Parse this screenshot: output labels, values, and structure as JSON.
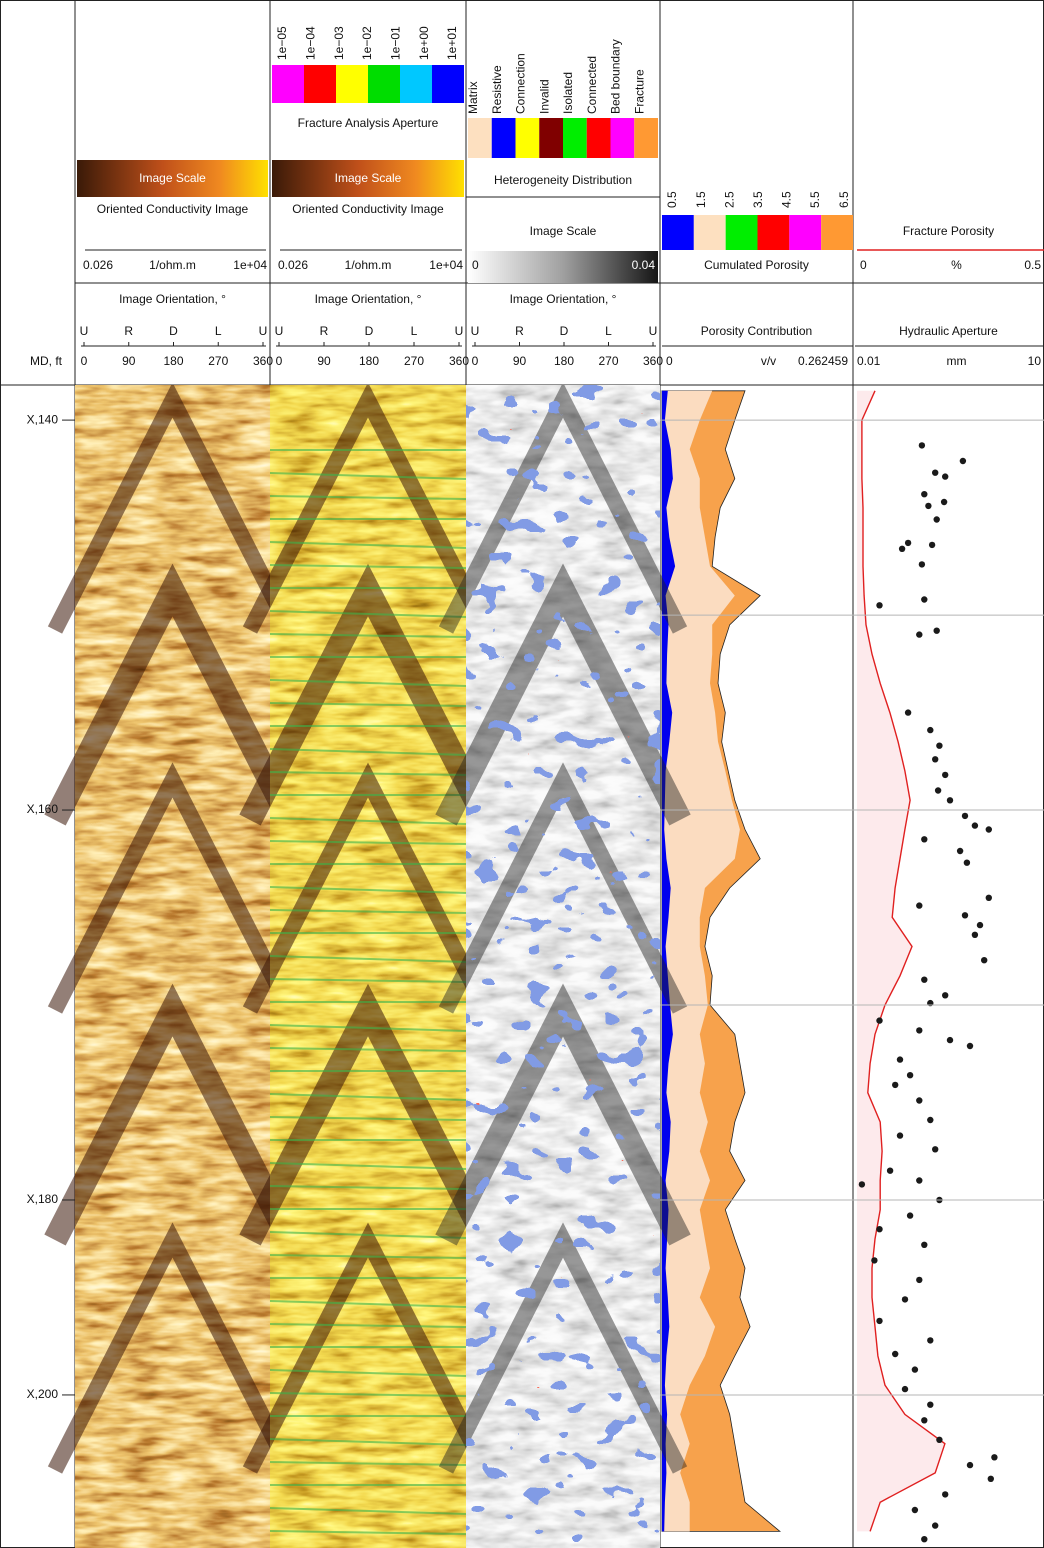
{
  "chart_data": [
    {
      "type": "depth",
      "title": "MD, ft",
      "ylim": [
        138.2,
        197.85
      ],
      "gridlines": [
        140,
        150,
        160,
        170,
        180,
        190
      ],
      "labels": [
        "X,140",
        "X,160",
        "X,180",
        "X,200"
      ]
    },
    {
      "type": "image",
      "palette": "conductivity",
      "scale_title": "Image Scale",
      "title": "Oriented Conductivity Image",
      "scale_ticks": [
        0.026,
        {
          "value": 10000,
          "label": "1e+04"
        }
      ],
      "scale_unit": "1/ohm.m",
      "orientation_title": "Image Orientation, °",
      "orientation_labels": [
        "U",
        "R",
        "D",
        "L",
        "U"
      ],
      "xlim": [
        0,
        360
      ],
      "xticks": [
        0,
        90,
        180,
        270,
        360
      ]
    },
    {
      "type": "image",
      "palette": "fracture",
      "scale_title": "Image Scale",
      "title": "Oriented Conductivity Image",
      "scale_ticks": [
        0.026,
        {
          "value": 10000,
          "label": "1e+04"
        }
      ],
      "scale_unit": "1/ohm.m",
      "orientation_title": "Image Orientation, °",
      "orientation_labels": [
        "U",
        "R",
        "D",
        "L",
        "U"
      ],
      "xlim": [
        0,
        360
      ],
      "xticks": [
        0,
        90,
        180,
        270,
        360
      ],
      "legend": {
        "title": "Fracture Analysis Aperture",
        "ticks": [
          {
            "value": 1e-05,
            "label": "1e−05"
          },
          {
            "value": 0.0001,
            "label": "1e−04"
          },
          {
            "value": 0.001,
            "label": "1e−03"
          },
          {
            "value": 0.01,
            "label": "1e−02"
          },
          {
            "value": 0.1,
            "label": "1e−01"
          },
          {
            "value": 1,
            "label": "1e+00"
          },
          {
            "value": 10,
            "label": "1e+01"
          }
        ],
        "colors": [
          "#ff00ff",
          "#ff0000",
          "#ffff00",
          "#00dd00",
          "#00c8ff",
          "#0000ff"
        ]
      }
    },
    {
      "type": "image",
      "palette": "heterogeneity",
      "scale_title": "Image Scale",
      "scale_ticks": [
        0,
        0.04
      ],
      "orientation_title": "Image Orientation, °",
      "orientation_labels": [
        "U",
        "R",
        "D",
        "L",
        "U"
      ],
      "xlim": [
        0,
        360
      ],
      "xticks": [
        0,
        90,
        180,
        270,
        360
      ],
      "legend": {
        "title": "Heterogeneity Distribution",
        "labels": [
          "Matrix",
          "Resistive",
          "Connection",
          "Invalid",
          "Isolated",
          "Connected",
          "Bed boundary",
          "Fracture"
        ],
        "colors": [
          "#fde0c0",
          "#0000ff",
          "#ffff00",
          "#800000",
          "#00ee00",
          "#ff0000",
          "#ff00ff",
          "#ff9933"
        ]
      }
    },
    {
      "type": "area",
      "title": "Porosity Contribution",
      "xlim": [
        0,
        0.262459
      ],
      "xticks": [
        0,
        0.262459
      ],
      "unit": "v/v",
      "legend": {
        "title": "Cumulated Porosity",
        "ticks": [
          0.5,
          1.5,
          2.5,
          3.5,
          4.5,
          5.5,
          6.5
        ],
        "colors": [
          "#0000ff",
          "#fde0c0",
          "#00ee00",
          "#ff0000",
          "#ff00ff",
          "#ff9933"
        ]
      },
      "depth": [
        138.5,
        140,
        141.5,
        143,
        144.5,
        146,
        147.5,
        149,
        150.5,
        152,
        153.5,
        155,
        156.5,
        158,
        159.5,
        161,
        162.5,
        164,
        165.5,
        167,
        168.5,
        170,
        171.5,
        173,
        174.5,
        176,
        177.5,
        179,
        180.5,
        182,
        183.5,
        185,
        186.5,
        188,
        189.5,
        191,
        192.5,
        194,
        195.5,
        197
      ],
      "series": [
        {
          "color": "#f7a24c",
          "values": [
            0.114,
            0.1,
            0.087,
            0.1,
            0.08,
            0.073,
            0.069,
            0.135,
            0.093,
            0.08,
            0.077,
            0.087,
            0.082,
            0.091,
            0.1,
            0.114,
            0.135,
            0.093,
            0.066,
            0.059,
            0.069,
            0.066,
            0.1,
            0.107,
            0.114,
            0.1,
            0.093,
            0.114,
            0.087,
            0.1,
            0.114,
            0.107,
            0.121,
            0.1,
            0.08,
            0.093,
            0.1,
            0.107,
            0.114,
            0.162
          ]
        },
        {
          "color": "#fbdcc0",
          "values": [
            0.069,
            0.052,
            0.038,
            0.052,
            0.052,
            0.059,
            0.066,
            0.1,
            0.069,
            0.069,
            0.066,
            0.073,
            0.077,
            0.087,
            0.096,
            0.107,
            0.1,
            0.059,
            0.052,
            0.052,
            0.059,
            0.063,
            0.052,
            0.059,
            0.052,
            0.063,
            0.052,
            0.066,
            0.052,
            0.059,
            0.066,
            0.052,
            0.073,
            0.059,
            0.038,
            0.025,
            0.038,
            0.025,
            0.038,
            0.038
          ]
        },
        {
          "color": "#0000ee",
          "values": [
            0.008,
            0.004,
            0.012,
            0.015,
            0.006,
            0.01,
            0.018,
            0.005,
            0.009,
            0.007,
            0.006,
            0.014,
            0.01,
            0.005,
            0.004,
            0.003,
            0.006,
            0.012,
            0.009,
            0.005,
            0.008,
            0.011,
            0.015,
            0.009,
            0.006,
            0.012,
            0.01,
            0.005,
            0.009,
            0.007,
            0.005,
            0.008,
            0.01,
            0.006,
            0.004,
            0.007,
            0.005,
            0.006,
            0.004,
            0.003
          ]
        }
      ]
    },
    {
      "type": "line-scatter",
      "line": {
        "title": "Fracture Porosity",
        "xlim": [
          0,
          0.5
        ],
        "xticks": [
          0,
          0.5
        ],
        "unit": "%",
        "color": "#e02020",
        "fill": "#fdeaec",
        "values": [
          0.048,
          0.013,
          0.013,
          0.013,
          0.016,
          0.016,
          0.016,
          0.019,
          0.024,
          0.04,
          0.062,
          0.088,
          0.11,
          0.128,
          0.142,
          0.128,
          0.115,
          0.102,
          0.094,
          0.147,
          0.115,
          0.075,
          0.048,
          0.035,
          0.029,
          0.062,
          0.067,
          0.062,
          0.062,
          0.048,
          0.04,
          0.04,
          0.048,
          0.056,
          0.075,
          0.128,
          0.235,
          0.209,
          0.062,
          0.035
        ]
      },
      "scatter": {
        "title": "Hydraulic Aperture",
        "xlim": [
          0.01,
          10
        ],
        "xticks": [
          0.01,
          10
        ],
        "unit": "mm",
        "log": true,
        "color": "#1a1a1a",
        "depth": [
          141.3,
          142.1,
          142.7,
          142.9,
          143.8,
          144.2,
          144.4,
          145.1,
          146.3,
          146.4,
          146.6,
          147.4,
          149.2,
          149.5,
          150.8,
          151.0,
          155.0,
          155.9,
          156.7,
          157.4,
          158.2,
          159.0,
          159.5,
          160.3,
          160.8,
          161.0,
          161.5,
          162.1,
          162.7,
          164.5,
          164.9,
          165.4,
          165.9,
          166.4,
          167.7,
          168.7,
          169.5,
          169.9,
          170.8,
          171.3,
          171.8,
          172.1,
          172.8,
          173.6,
          174.1,
          174.9,
          175.9,
          176.7,
          177.4,
          178.5,
          179.0,
          179.2,
          180.0,
          180.8,
          181.5,
          182.3,
          183.1,
          184.1,
          185.1,
          186.2,
          187.2,
          187.9,
          188.7,
          189.7,
          190.5,
          191.3,
          192.3,
          193.2,
          193.6,
          194.3,
          195.1,
          195.9,
          196.7,
          197.4
        ],
        "values": [
          0.11,
          0.5,
          0.18,
          0.26,
          0.12,
          0.25,
          0.14,
          0.19,
          0.066,
          0.16,
          0.053,
          0.11,
          0.12,
          0.023,
          0.19,
          0.1,
          0.066,
          0.15,
          0.21,
          0.18,
          0.26,
          0.2,
          0.31,
          0.54,
          0.78,
          1.3,
          0.12,
          0.45,
          0.58,
          1.3,
          0.1,
          0.54,
          0.94,
          0.78,
          1.1,
          0.12,
          0.26,
          0.15,
          0.023,
          0.1,
          0.31,
          0.65,
          0.049,
          0.071,
          0.041,
          0.1,
          0.15,
          0.049,
          0.18,
          0.034,
          0.1,
          0.012,
          0.21,
          0.071,
          0.023,
          0.12,
          0.019,
          0.1,
          0.059,
          0.023,
          0.15,
          0.041,
          0.085,
          0.059,
          0.15,
          0.12,
          0.21,
          1.6,
          0.65,
          1.4,
          0.26,
          0.085,
          0.18,
          0.12
        ]
      }
    }
  ]
}
